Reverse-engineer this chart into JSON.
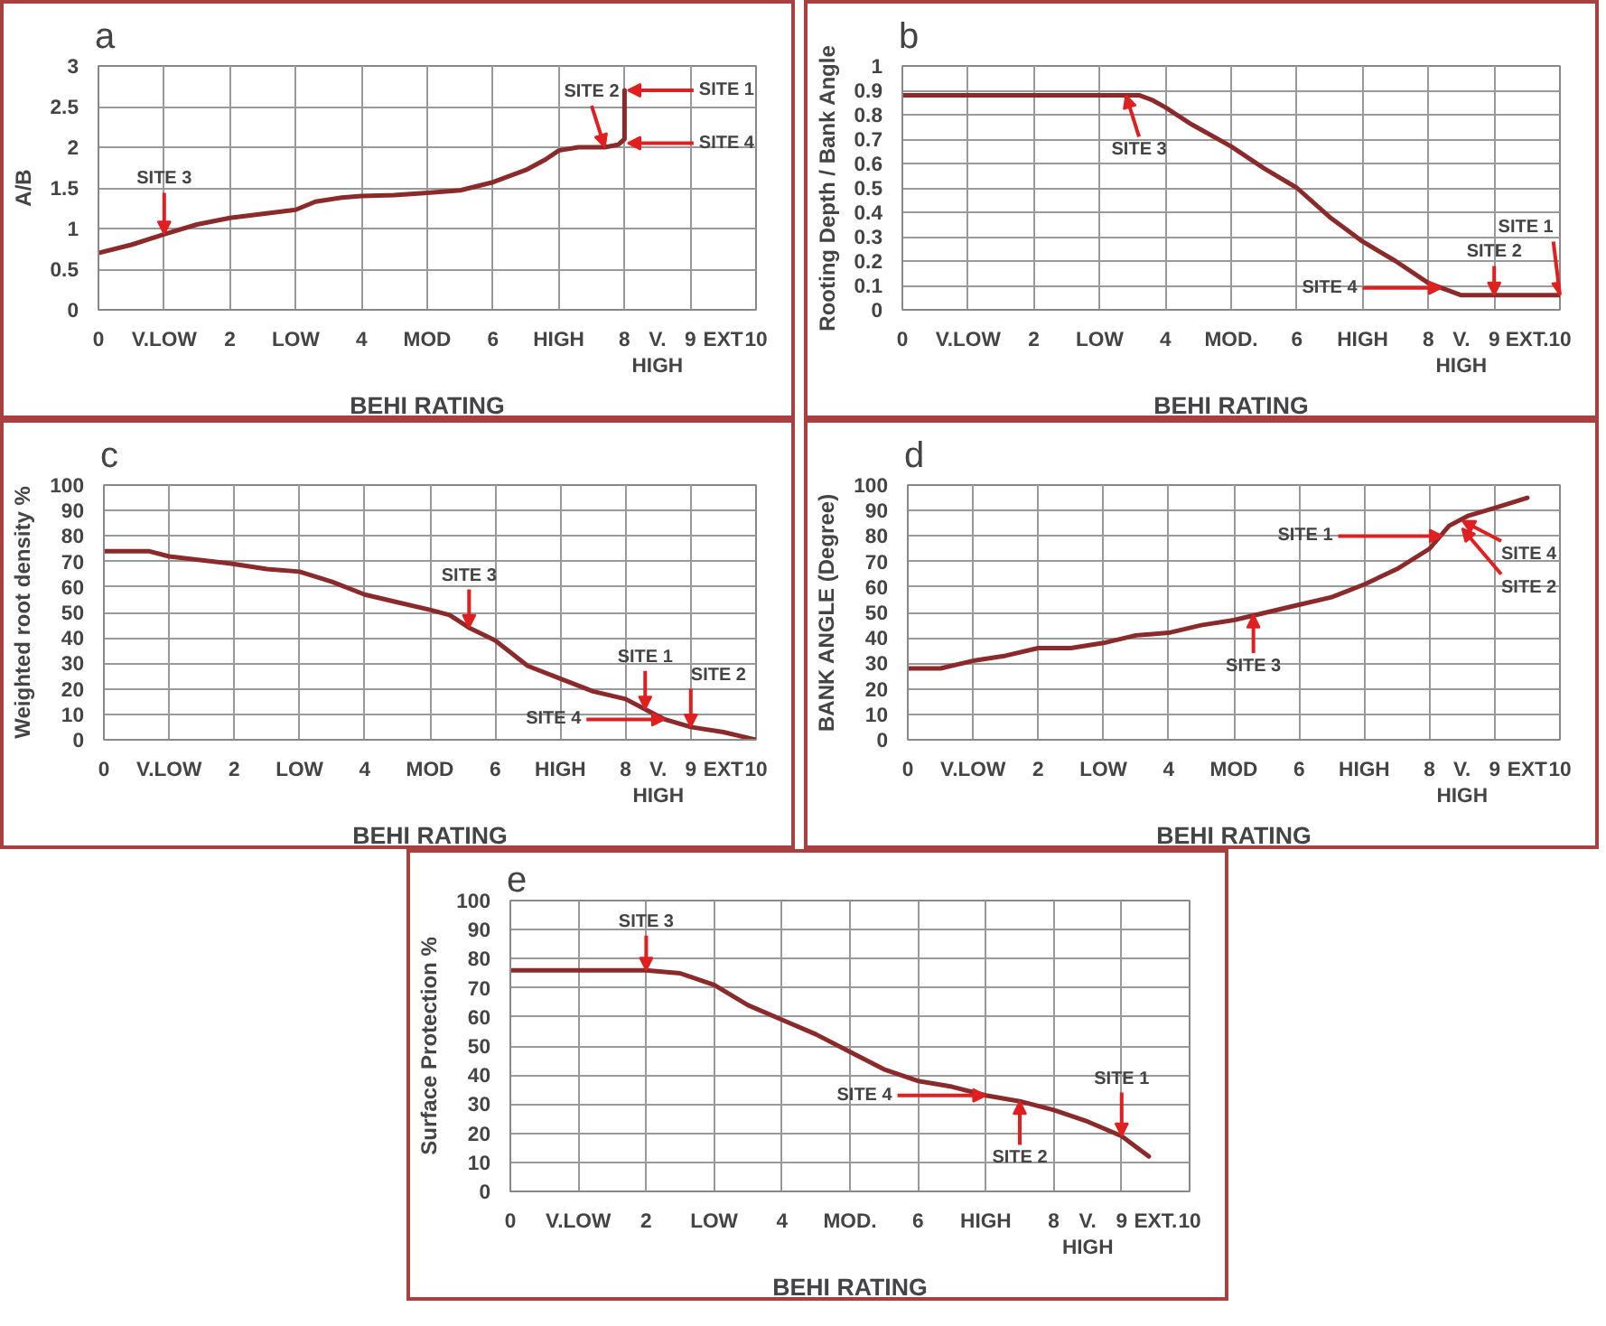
{
  "chart_data": [
    {
      "type": "line",
      "title": "a",
      "xlabel": "BEHI RATING",
      "ylabel": "A/B",
      "xlim": [
        0,
        10
      ],
      "ylim": [
        0,
        3
      ],
      "xticks": [
        0,
        {
          "value": 1,
          "label": "V.LOW"
        },
        2,
        {
          "value": 3,
          "label": "LOW"
        },
        4,
        {
          "value": 5,
          "label": "MOD"
        },
        6,
        {
          "value": 7,
          "label": "HIGH"
        },
        8,
        {
          "value": 8.5,
          "label": "V.\nHIGH"
        },
        9,
        {
          "value": 9.5,
          "label": "EXT"
        },
        10
      ],
      "yticks": [
        0,
        0.5,
        1,
        1.5,
        2,
        2.5,
        3
      ],
      "grid": true,
      "series": [
        {
          "color": "#8b2a2a",
          "x": [
            0,
            0.5,
            1,
            1.5,
            2,
            2.5,
            3,
            3.3,
            3.7,
            4,
            4.5,
            5,
            5.5,
            6,
            6.5,
            6.8,
            7,
            7.3,
            7.7,
            7.9,
            8.0,
            8.0
          ],
          "values": [
            0.7,
            0.8,
            0.93,
            1.05,
            1.13,
            1.18,
            1.23,
            1.33,
            1.38,
            1.4,
            1.41,
            1.44,
            1.47,
            1.57,
            1.72,
            1.85,
            1.96,
            2.0,
            2.0,
            2.03,
            2.1,
            2.7
          ]
        }
      ],
      "annotations": [
        {
          "text": "SITE 3",
          "x": 1,
          "y": 0.93
        },
        {
          "text": "SITE 2",
          "x": 7.7,
          "y": 2.0
        },
        {
          "text": "SITE 4",
          "x": 8.05,
          "y": 2.05
        },
        {
          "text": "SITE 1",
          "x": 8.05,
          "y": 2.7
        }
      ]
    },
    {
      "type": "line",
      "title": "b",
      "xlabel": "BEHI RATING",
      "ylabel": "Rooting Depth / Bank Angle",
      "xlim": [
        0,
        10
      ],
      "ylim": [
        0,
        1
      ],
      "xticks": [
        0,
        {
          "value": 1,
          "label": "V.LOW"
        },
        2,
        {
          "value": 3,
          "label": "LOW"
        },
        4,
        {
          "value": 5,
          "label": "MOD."
        },
        6,
        {
          "value": 7,
          "label": "HIGH"
        },
        8,
        {
          "value": 8.5,
          "label": "V.\nHIGH"
        },
        9,
        {
          "value": 9.5,
          "label": "EXT."
        },
        10
      ],
      "yticks": [
        0,
        0.1,
        0.2,
        0.3,
        0.4,
        0.5,
        0.6,
        0.7,
        0.8,
        0.9,
        1
      ],
      "grid": true,
      "series": [
        {
          "color": "#8b2a2a",
          "x": [
            0,
            3.6,
            3.8,
            4,
            4.4,
            5,
            5.5,
            6,
            6.5,
            7,
            7.5,
            8,
            8.5,
            10
          ],
          "values": [
            0.88,
            0.88,
            0.86,
            0.83,
            0.76,
            0.67,
            0.58,
            0.5,
            0.38,
            0.28,
            0.2,
            0.11,
            0.06,
            0.06
          ]
        }
      ],
      "annotations": [
        {
          "text": "SITE 3",
          "x": 3.4,
          "y": 0.88
        },
        {
          "text": "SITE 4",
          "x": 8.2,
          "y": 0.09
        },
        {
          "text": "SITE 2",
          "x": 9,
          "y": 0.06
        },
        {
          "text": "SITE 1",
          "x": 10,
          "y": 0.06
        }
      ]
    },
    {
      "type": "line",
      "title": "c",
      "xlabel": "BEHI RATING",
      "ylabel": "Weighted root density %",
      "xlim": [
        0,
        10
      ],
      "ylim": [
        0,
        100
      ],
      "xticks": [
        0,
        {
          "value": 1,
          "label": "V.LOW"
        },
        2,
        {
          "value": 3,
          "label": "LOW"
        },
        4,
        {
          "value": 5,
          "label": "MOD"
        },
        6,
        {
          "value": 7,
          "label": "HIGH"
        },
        8,
        {
          "value": 8.5,
          "label": "V.\nHIGH"
        },
        9,
        {
          "value": 9.5,
          "label": "EXT"
        },
        10
      ],
      "yticks": [
        0,
        10,
        20,
        30,
        40,
        50,
        60,
        70,
        80,
        90,
        100
      ],
      "grid": true,
      "series": [
        {
          "color": "#8b2a2a",
          "x": [
            0,
            0.7,
            1,
            2,
            2.5,
            3,
            3.5,
            4,
            4.5,
            5,
            5.3,
            5.6,
            6,
            6.5,
            7,
            7.5,
            8,
            8.3,
            8.6,
            9,
            9.5,
            10
          ],
          "values": [
            74,
            74,
            72,
            69,
            67,
            66,
            62,
            57,
            54,
            51,
            49,
            44,
            39,
            29,
            24,
            19,
            16,
            12,
            8,
            5,
            3,
            0
          ]
        }
      ],
      "annotations": [
        {
          "text": "SITE 3",
          "x": 5.6,
          "y": 44
        },
        {
          "text": "SITE 1",
          "x": 8.3,
          "y": 12
        },
        {
          "text": "SITE 4",
          "x": 8.6,
          "y": 8
        },
        {
          "text": "SITE 2",
          "x": 9,
          "y": 5
        }
      ]
    },
    {
      "type": "line",
      "title": "d",
      "xlabel": "BEHI RATING",
      "ylabel": "BANK ANGLE (Degree)",
      "xlim": [
        0,
        10
      ],
      "ylim": [
        0,
        100
      ],
      "xticks": [
        0,
        {
          "value": 1,
          "label": "V.LOW"
        },
        2,
        {
          "value": 3,
          "label": "LOW"
        },
        4,
        {
          "value": 5,
          "label": "MOD"
        },
        6,
        {
          "value": 7,
          "label": "HIGH"
        },
        8,
        {
          "value": 8.5,
          "label": "V.\nHIGH"
        },
        9,
        {
          "value": 9.5,
          "label": "EXT"
        },
        10
      ],
      "yticks": [
        0,
        10,
        20,
        30,
        40,
        50,
        60,
        70,
        80,
        90,
        100
      ],
      "grid": true,
      "series": [
        {
          "color": "#8b2a2a",
          "x": [
            0,
            0.5,
            1,
            1.5,
            2,
            2.5,
            3,
            3.5,
            4,
            4.5,
            5,
            5.5,
            6,
            6.5,
            7,
            7.5,
            8,
            8.3,
            8.6,
            9,
            9.5
          ],
          "values": [
            28,
            28,
            31,
            33,
            36,
            36,
            38,
            41,
            42,
            45,
            47,
            50,
            53,
            56,
            61,
            67,
            75,
            84,
            88,
            91,
            95
          ]
        }
      ],
      "annotations": [
        {
          "text": "SITE 1",
          "x": 8.2,
          "y": 80
        },
        {
          "text": "SITE 4",
          "x": 8.5,
          "y": 86
        },
        {
          "text": "SITE 2",
          "x": 8.5,
          "y": 83
        },
        {
          "text": "SITE 3",
          "x": 5.3,
          "y": 49
        }
      ]
    },
    {
      "type": "line",
      "title": "e",
      "xlabel": "BEHI RATING",
      "ylabel": "Surface Protection %",
      "xlim": [
        0,
        10
      ],
      "ylim": [
        0,
        100
      ],
      "xticks": [
        0,
        {
          "value": 1,
          "label": "V.LOW"
        },
        2,
        {
          "value": 3,
          "label": "LOW"
        },
        4,
        {
          "value": 5,
          "label": "MOD."
        },
        6,
        {
          "value": 7,
          "label": "HIGH"
        },
        8,
        {
          "value": 8.5,
          "label": "V.\nHIGH"
        },
        9,
        {
          "value": 9.5,
          "label": "EXT."
        },
        10
      ],
      "yticks": [
        0,
        10,
        20,
        30,
        40,
        50,
        60,
        70,
        80,
        90,
        100
      ],
      "grid": true,
      "series": [
        {
          "color": "#8b2a2a",
          "x": [
            0,
            2,
            2.5,
            3,
            3.5,
            4,
            4.5,
            5,
            5.5,
            6,
            6.5,
            7,
            7.5,
            8,
            8.5,
            9,
            9.4
          ],
          "values": [
            76,
            76,
            75,
            71,
            64,
            59,
            54,
            48,
            42,
            38,
            36,
            33,
            31,
            28,
            24,
            19,
            12
          ]
        }
      ],
      "annotations": [
        {
          "text": "SITE 3",
          "x": 2,
          "y": 76
        },
        {
          "text": "SITE 4",
          "x": 7,
          "y": 33
        },
        {
          "text": "SITE 2",
          "x": 7.5,
          "y": 31
        },
        {
          "text": "SITE 1",
          "x": 9,
          "y": 19
        }
      ]
    }
  ]
}
